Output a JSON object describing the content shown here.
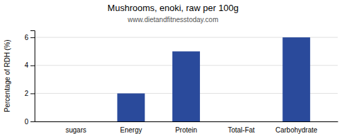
{
  "chart_data": {
    "type": "bar",
    "title": "Mushrooms, enoki, raw per 100g",
    "subtitle": "www.dietandfitnesstoday.com",
    "categories": [
      "sugars",
      "Energy",
      "Protein",
      "Total-Fat",
      "Carbohydrate"
    ],
    "values": [
      0,
      2,
      5,
      0,
      6
    ],
    "color": "#2a4a9b",
    "ylabel": "Percentage of RDH (%)",
    "ylim": [
      0,
      6.5
    ],
    "yticks": [
      0,
      2,
      4,
      6
    ],
    "grid": true
  }
}
